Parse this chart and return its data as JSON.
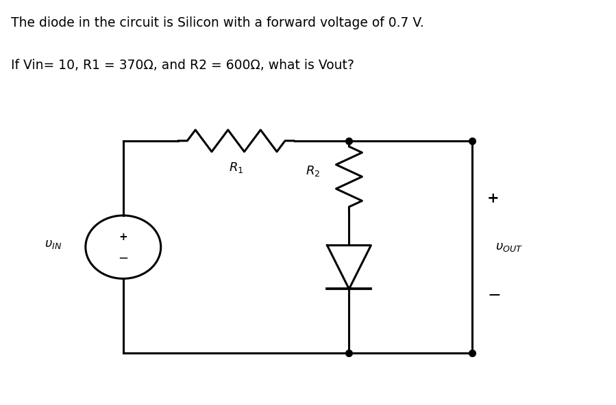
{
  "line1": "The diode in the circuit is Silicon with a forward voltage of 0.7 V.",
  "line2": "If Vin= 10, R1 = 370Ω, and R2 = 600Ω, what is Vout?",
  "bg_color": "#ffffff",
  "line_color": "#000000",
  "lw": 2.2,
  "text_fontsize": 13.5,
  "circuit_scale": 1.0
}
